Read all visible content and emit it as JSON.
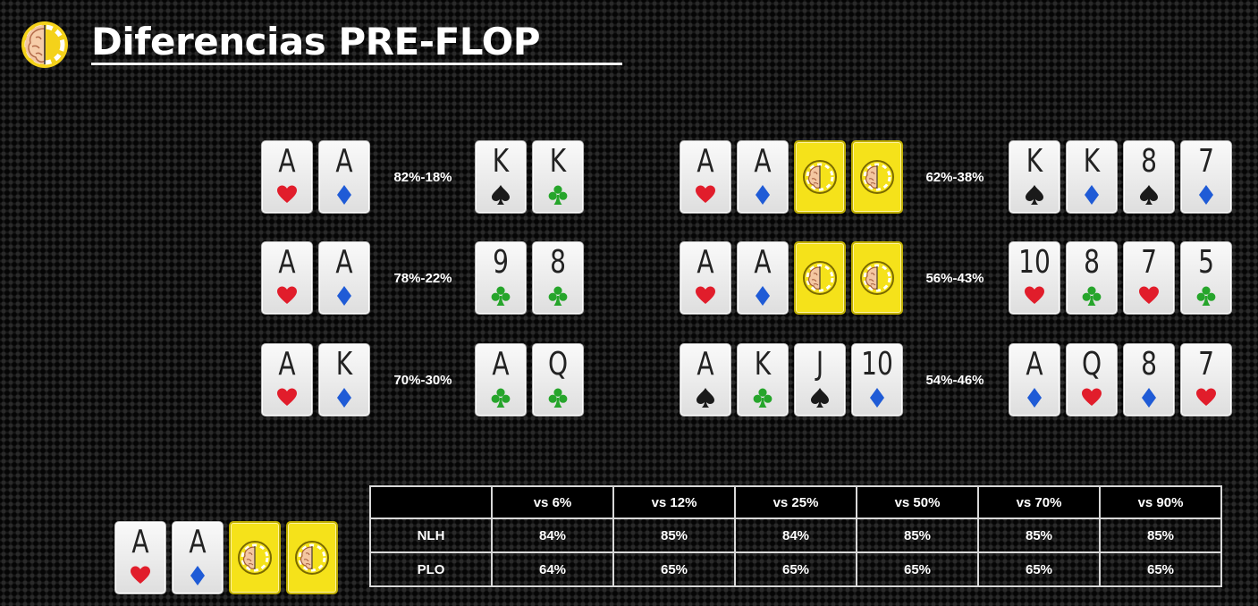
{
  "header": {
    "title": "Diferencias PRE-FLOP",
    "logo_icon": "brain-poker-chip-icon"
  },
  "colors": {
    "heart": "#e11d2b",
    "diamond": "#1f5bd6",
    "spade": "#1a1a1a",
    "club": "#26a52b",
    "card_back": "#f5e21a"
  },
  "left_matchups": [
    {
      "hero": [
        {
          "rank": "A",
          "suit": "heart"
        },
        {
          "rank": "A",
          "suit": "diamond"
        }
      ],
      "equity": "82%-18%",
      "villain": [
        {
          "rank": "K",
          "suit": "spade"
        },
        {
          "rank": "K",
          "suit": "club"
        }
      ]
    },
    {
      "hero": [
        {
          "rank": "A",
          "suit": "heart"
        },
        {
          "rank": "A",
          "suit": "diamond"
        }
      ],
      "equity": "78%-22%",
      "villain": [
        {
          "rank": "9",
          "suit": "club"
        },
        {
          "rank": "8",
          "suit": "club"
        }
      ]
    },
    {
      "hero": [
        {
          "rank": "A",
          "suit": "heart"
        },
        {
          "rank": "K",
          "suit": "diamond"
        }
      ],
      "equity": "70%-30%",
      "villain": [
        {
          "rank": "A",
          "suit": "club"
        },
        {
          "rank": "Q",
          "suit": "club"
        }
      ]
    }
  ],
  "right_matchups": [
    {
      "hero": [
        {
          "rank": "A",
          "suit": "heart"
        },
        {
          "rank": "A",
          "suit": "diamond"
        },
        {
          "back": true
        },
        {
          "back": true
        }
      ],
      "equity": "62%-38%",
      "villain": [
        {
          "rank": "K",
          "suit": "spade"
        },
        {
          "rank": "K",
          "suit": "diamond"
        },
        {
          "rank": "8",
          "suit": "spade"
        },
        {
          "rank": "7",
          "suit": "diamond"
        }
      ]
    },
    {
      "hero": [
        {
          "rank": "A",
          "suit": "heart"
        },
        {
          "rank": "A",
          "suit": "diamond"
        },
        {
          "back": true
        },
        {
          "back": true
        }
      ],
      "equity": "56%-43%",
      "villain": [
        {
          "rank": "10",
          "suit": "heart"
        },
        {
          "rank": "8",
          "suit": "club"
        },
        {
          "rank": "7",
          "suit": "heart"
        },
        {
          "rank": "5",
          "suit": "club"
        }
      ]
    },
    {
      "hero": [
        {
          "rank": "A",
          "suit": "spade"
        },
        {
          "rank": "K",
          "suit": "club"
        },
        {
          "rank": "J",
          "suit": "spade"
        },
        {
          "rank": "10",
          "suit": "diamond"
        }
      ],
      "equity": "54%-46%",
      "villain": [
        {
          "rank": "A",
          "suit": "diamond"
        },
        {
          "rank": "Q",
          "suit": "heart"
        },
        {
          "rank": "8",
          "suit": "diamond"
        },
        {
          "rank": "7",
          "suit": "heart"
        }
      ]
    }
  ],
  "bottom_hand": [
    {
      "rank": "A",
      "suit": "heart"
    },
    {
      "rank": "A",
      "suit": "diamond"
    },
    {
      "back": true
    },
    {
      "back": true
    }
  ],
  "stats_table": {
    "columns": [
      "vs 6%",
      "vs 12%",
      "vs 25%",
      "vs 50%",
      "vs 70%",
      "vs 90%"
    ],
    "rows": [
      {
        "label": "NLH",
        "values": [
          "84%",
          "85%",
          "84%",
          "85%",
          "85%",
          "85%"
        ]
      },
      {
        "label": "PLO",
        "values": [
          "64%",
          "65%",
          "65%",
          "65%",
          "65%",
          "65%"
        ]
      }
    ]
  }
}
